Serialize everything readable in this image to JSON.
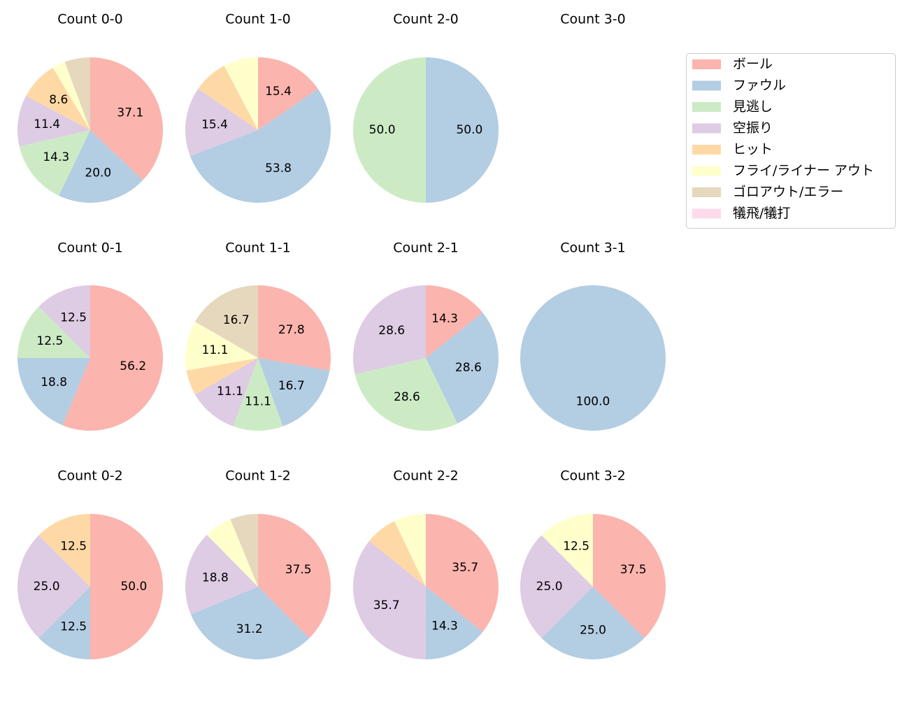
{
  "chart_data": {
    "type": "pie",
    "legend": {
      "placement": "upper-right",
      "entries": [
        "ボール",
        "ファウル",
        "見逃し",
        "空振り",
        "ヒット",
        "フライ/ライナー アウト",
        "ゴロアウト/エラー",
        "犠飛/犠打"
      ]
    },
    "colors": [
      "#fbb4ae",
      "#b3cde3",
      "#ccebc5",
      "#decbe4",
      "#fed9a6",
      "#ffffcc",
      "#e5d8bd",
      "#fddaec"
    ],
    "charts": [
      {
        "title": "Count 0-0",
        "values": [
          37.1,
          20.0,
          14.3,
          11.4,
          8.6,
          2.9,
          5.7,
          0
        ],
        "labels": [
          "37.1",
          "20.0",
          "14.3",
          "11.4",
          "8.6",
          "",
          "",
          ""
        ]
      },
      {
        "title": "Count 1-0",
        "values": [
          15.4,
          53.8,
          0,
          15.4,
          7.7,
          7.7,
          0,
          0
        ],
        "labels": [
          "15.4",
          "53.8",
          "",
          "15.4",
          "",
          "",
          "",
          ""
        ]
      },
      {
        "title": "Count 2-0",
        "values": [
          0,
          50.0,
          50.0,
          0,
          0,
          0,
          0,
          0
        ],
        "labels": [
          "",
          "50.0",
          "50.0",
          "",
          "",
          "",
          "",
          ""
        ]
      },
      {
        "title": "Count 3-0",
        "values": [],
        "labels": []
      },
      {
        "title": "Count 0-1",
        "values": [
          56.2,
          18.8,
          12.5,
          12.5,
          0,
          0,
          0,
          0
        ],
        "labels": [
          "56.2",
          "18.8",
          "12.5",
          "12.5",
          "",
          "",
          "",
          ""
        ]
      },
      {
        "title": "Count 1-1",
        "values": [
          27.8,
          16.7,
          11.1,
          11.1,
          5.6,
          11.1,
          16.7,
          0
        ],
        "labels": [
          "27.8",
          "16.7",
          "11.1",
          "11.1",
          "",
          "11.1",
          "16.7",
          ""
        ]
      },
      {
        "title": "Count 2-1",
        "values": [
          14.3,
          28.6,
          28.6,
          28.6,
          0,
          0,
          0,
          0
        ],
        "labels": [
          "14.3",
          "28.6",
          "28.6",
          "28.6",
          "",
          "",
          "",
          ""
        ]
      },
      {
        "title": "Count 3-1",
        "values": [
          0,
          100.0,
          0,
          0,
          0,
          0,
          0,
          0
        ],
        "labels": [
          "",
          "100.0",
          "",
          "",
          "",
          "",
          "",
          ""
        ]
      },
      {
        "title": "Count 0-2",
        "values": [
          50.0,
          12.5,
          0,
          25.0,
          12.5,
          0,
          0,
          0
        ],
        "labels": [
          "50.0",
          "12.5",
          "",
          "25.0",
          "12.5",
          "",
          "",
          ""
        ]
      },
      {
        "title": "Count 1-2",
        "values": [
          37.5,
          31.2,
          0,
          18.8,
          0,
          6.2,
          6.2,
          0
        ],
        "labels": [
          "37.5",
          "31.2",
          "",
          "18.8",
          "",
          "",
          "",
          ""
        ]
      },
      {
        "title": "Count 2-2",
        "values": [
          35.7,
          14.3,
          0,
          35.7,
          7.1,
          7.1,
          0,
          0
        ],
        "labels": [
          "35.7",
          "14.3",
          "",
          "35.7",
          "",
          "",
          "",
          ""
        ]
      },
      {
        "title": "Count 3-2",
        "values": [
          37.5,
          25.0,
          0,
          25.0,
          0,
          12.5,
          0,
          0
        ],
        "labels": [
          "37.5",
          "25.0",
          "",
          "25.0",
          "",
          "12.5",
          "",
          ""
        ]
      }
    ]
  }
}
